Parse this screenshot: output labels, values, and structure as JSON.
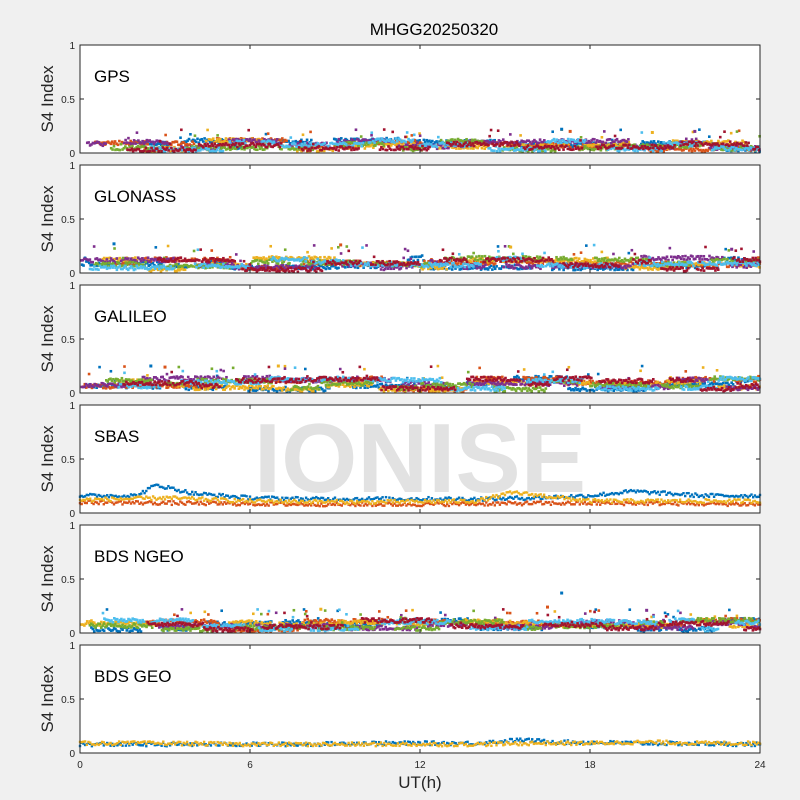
{
  "title": "MHGG20250320",
  "watermark": "IONISE",
  "colors": {
    "background": "#f0f0f0",
    "axes_background": "#ffffff",
    "axis_line": "#262626",
    "watermark": "#d9d9d9",
    "series_palette": [
      "#0072bd",
      "#d95319",
      "#edb120",
      "#7e2f8e",
      "#77ac30",
      "#4dbeee",
      "#a2142f"
    ]
  },
  "chart_data": [
    {
      "type": "scatter",
      "panel_label": "GPS",
      "ylabel": "S4 Index",
      "xlim": [
        0,
        24
      ],
      "ylim": [
        0,
        1
      ],
      "xticks": [
        "0",
        "6",
        "12",
        "18",
        "24"
      ],
      "yticks": [
        "0",
        "0.5",
        "1"
      ],
      "grid": false,
      "series_profile": {
        "base_range": [
          0.03,
          0.12
        ],
        "typical_max": 0.22,
        "n_series": 7
      },
      "highlights": [
        {
          "x": 17.0,
          "y": 0.22
        },
        {
          "x": 17.3,
          "y": 0.2
        },
        {
          "x": 20.2,
          "y": 0.19
        },
        {
          "x": 21.7,
          "y": 0.2
        }
      ]
    },
    {
      "type": "scatter",
      "panel_label": "GLONASS",
      "ylabel": "S4 Index",
      "xlim": [
        0,
        24
      ],
      "ylim": [
        0,
        1
      ],
      "xticks": [
        "0",
        "6",
        "12",
        "18",
        "24"
      ],
      "yticks": [
        "0",
        "0.5",
        "1"
      ],
      "grid": false,
      "series_profile": {
        "base_range": [
          0.03,
          0.14
        ],
        "typical_max": 0.26,
        "n_series": 7
      },
      "highlights": [
        {
          "x": 1.2,
          "y": 0.27
        },
        {
          "x": 9.2,
          "y": 0.26
        },
        {
          "x": 15.2,
          "y": 0.24
        },
        {
          "x": 23.0,
          "y": 0.22
        }
      ]
    },
    {
      "type": "scatter",
      "panel_label": "GALILEO",
      "ylabel": "S4 Index",
      "xlim": [
        0,
        24
      ],
      "ylim": [
        0,
        1
      ],
      "xticks": [
        "0",
        "6",
        "12",
        "18",
        "24"
      ],
      "yticks": [
        "0",
        "0.5",
        "1"
      ],
      "grid": false,
      "series_profile": {
        "base_range": [
          0.03,
          0.14
        ],
        "typical_max": 0.25,
        "n_series": 7
      },
      "highlights": [
        {
          "x": 2.5,
          "y": 0.25
        },
        {
          "x": 3.0,
          "y": 0.24
        },
        {
          "x": 7.0,
          "y": 0.25
        }
      ]
    },
    {
      "type": "scatter",
      "panel_label": "SBAS",
      "ylabel": "S4 Index",
      "xlim": [
        0,
        24
      ],
      "ylim": [
        0,
        1
      ],
      "xticks": [
        "0",
        "6",
        "12",
        "18",
        "24"
      ],
      "yticks": [
        "0",
        "0.5",
        "1"
      ],
      "grid": false,
      "series": [
        {
          "color": "#0072bd",
          "x": [
            0,
            2,
            2.7,
            4,
            6,
            8,
            10,
            12,
            14,
            16,
            18,
            19.5,
            22,
            24
          ],
          "y": [
            0.16,
            0.16,
            0.26,
            0.18,
            0.14,
            0.13,
            0.13,
            0.13,
            0.13,
            0.14,
            0.16,
            0.2,
            0.16,
            0.16
          ]
        },
        {
          "color": "#d95319",
          "x": [
            0,
            4,
            8,
            12,
            16,
            20,
            24
          ],
          "y": [
            0.1,
            0.09,
            0.08,
            0.08,
            0.09,
            0.09,
            0.08
          ]
        },
        {
          "color": "#edb120",
          "x": [
            0,
            3,
            6,
            10,
            14,
            15.3,
            18,
            24
          ],
          "y": [
            0.12,
            0.14,
            0.11,
            0.1,
            0.11,
            0.19,
            0.11,
            0.11
          ]
        }
      ]
    },
    {
      "type": "scatter",
      "panel_label": "BDS NGEO",
      "ylabel": "S4 Index",
      "xlim": [
        0,
        24
      ],
      "ylim": [
        0,
        1
      ],
      "xticks": [
        "0",
        "6",
        "12",
        "18",
        "24"
      ],
      "yticks": [
        "0",
        "0.5",
        "1"
      ],
      "grid": false,
      "series_profile": {
        "base_range": [
          0.03,
          0.12
        ],
        "typical_max": 0.22,
        "n_series": 7
      },
      "highlights": [
        {
          "x": 17.0,
          "y": 0.37
        },
        {
          "x": 16.5,
          "y": 0.24
        },
        {
          "x": 8.5,
          "y": 0.22
        },
        {
          "x": 20.0,
          "y": 0.21
        }
      ]
    },
    {
      "type": "scatter",
      "panel_label": "BDS GEO",
      "ylabel": "S4 Index",
      "xlim": [
        0,
        24
      ],
      "ylim": [
        0,
        1
      ],
      "xticks": [
        "0",
        "6",
        "12",
        "18",
        "24"
      ],
      "yticks": [
        "0",
        "0.5",
        "1"
      ],
      "xlabel": "UT(h)",
      "grid": false,
      "series": [
        {
          "color": "#0072bd",
          "x": [
            0,
            4,
            8,
            10,
            12,
            14,
            15.5,
            17,
            20,
            24
          ],
          "y": [
            0.08,
            0.08,
            0.08,
            0.09,
            0.09,
            0.09,
            0.12,
            0.1,
            0.09,
            0.08
          ]
        },
        {
          "color": "#edb120",
          "x": [
            0,
            3,
            6,
            9,
            12,
            14,
            16,
            18,
            20,
            22,
            24
          ],
          "y": [
            0.09,
            0.09,
            0.08,
            0.08,
            0.08,
            0.08,
            0.09,
            0.09,
            0.1,
            0.09,
            0.09
          ]
        }
      ]
    }
  ]
}
